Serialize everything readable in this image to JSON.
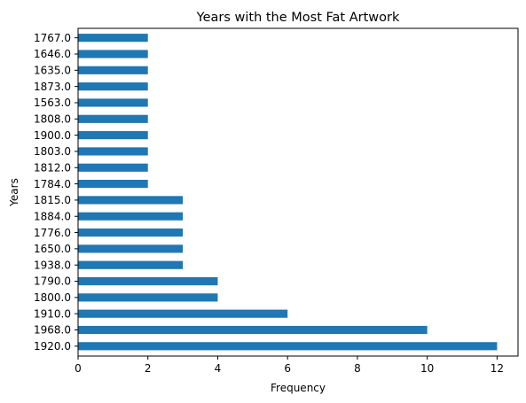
{
  "chart_data": {
    "type": "bar",
    "orientation": "horizontal",
    "title": "Years with the Most Fat Artwork",
    "xlabel": "Frequency",
    "ylabel": "Years",
    "categories": [
      "1767.0",
      "1646.0",
      "1635.0",
      "1873.0",
      "1563.0",
      "1808.0",
      "1900.0",
      "1803.0",
      "1812.0",
      "1784.0",
      "1815.0",
      "1884.0",
      "1776.0",
      "1650.0",
      "1938.0",
      "1790.0",
      "1800.0",
      "1910.0",
      "1968.0",
      "1920.0"
    ],
    "values": [
      2,
      2,
      2,
      2,
      2,
      2,
      2,
      2,
      2,
      2,
      3,
      3,
      3,
      3,
      3,
      4,
      4,
      6,
      10,
      12
    ],
    "xlim": [
      0,
      12.6
    ],
    "xticks": [
      "0",
      "2",
      "4",
      "6",
      "8",
      "10",
      "12"
    ],
    "bar_color": "#1f77b4",
    "grid": false,
    "legend": "none"
  }
}
